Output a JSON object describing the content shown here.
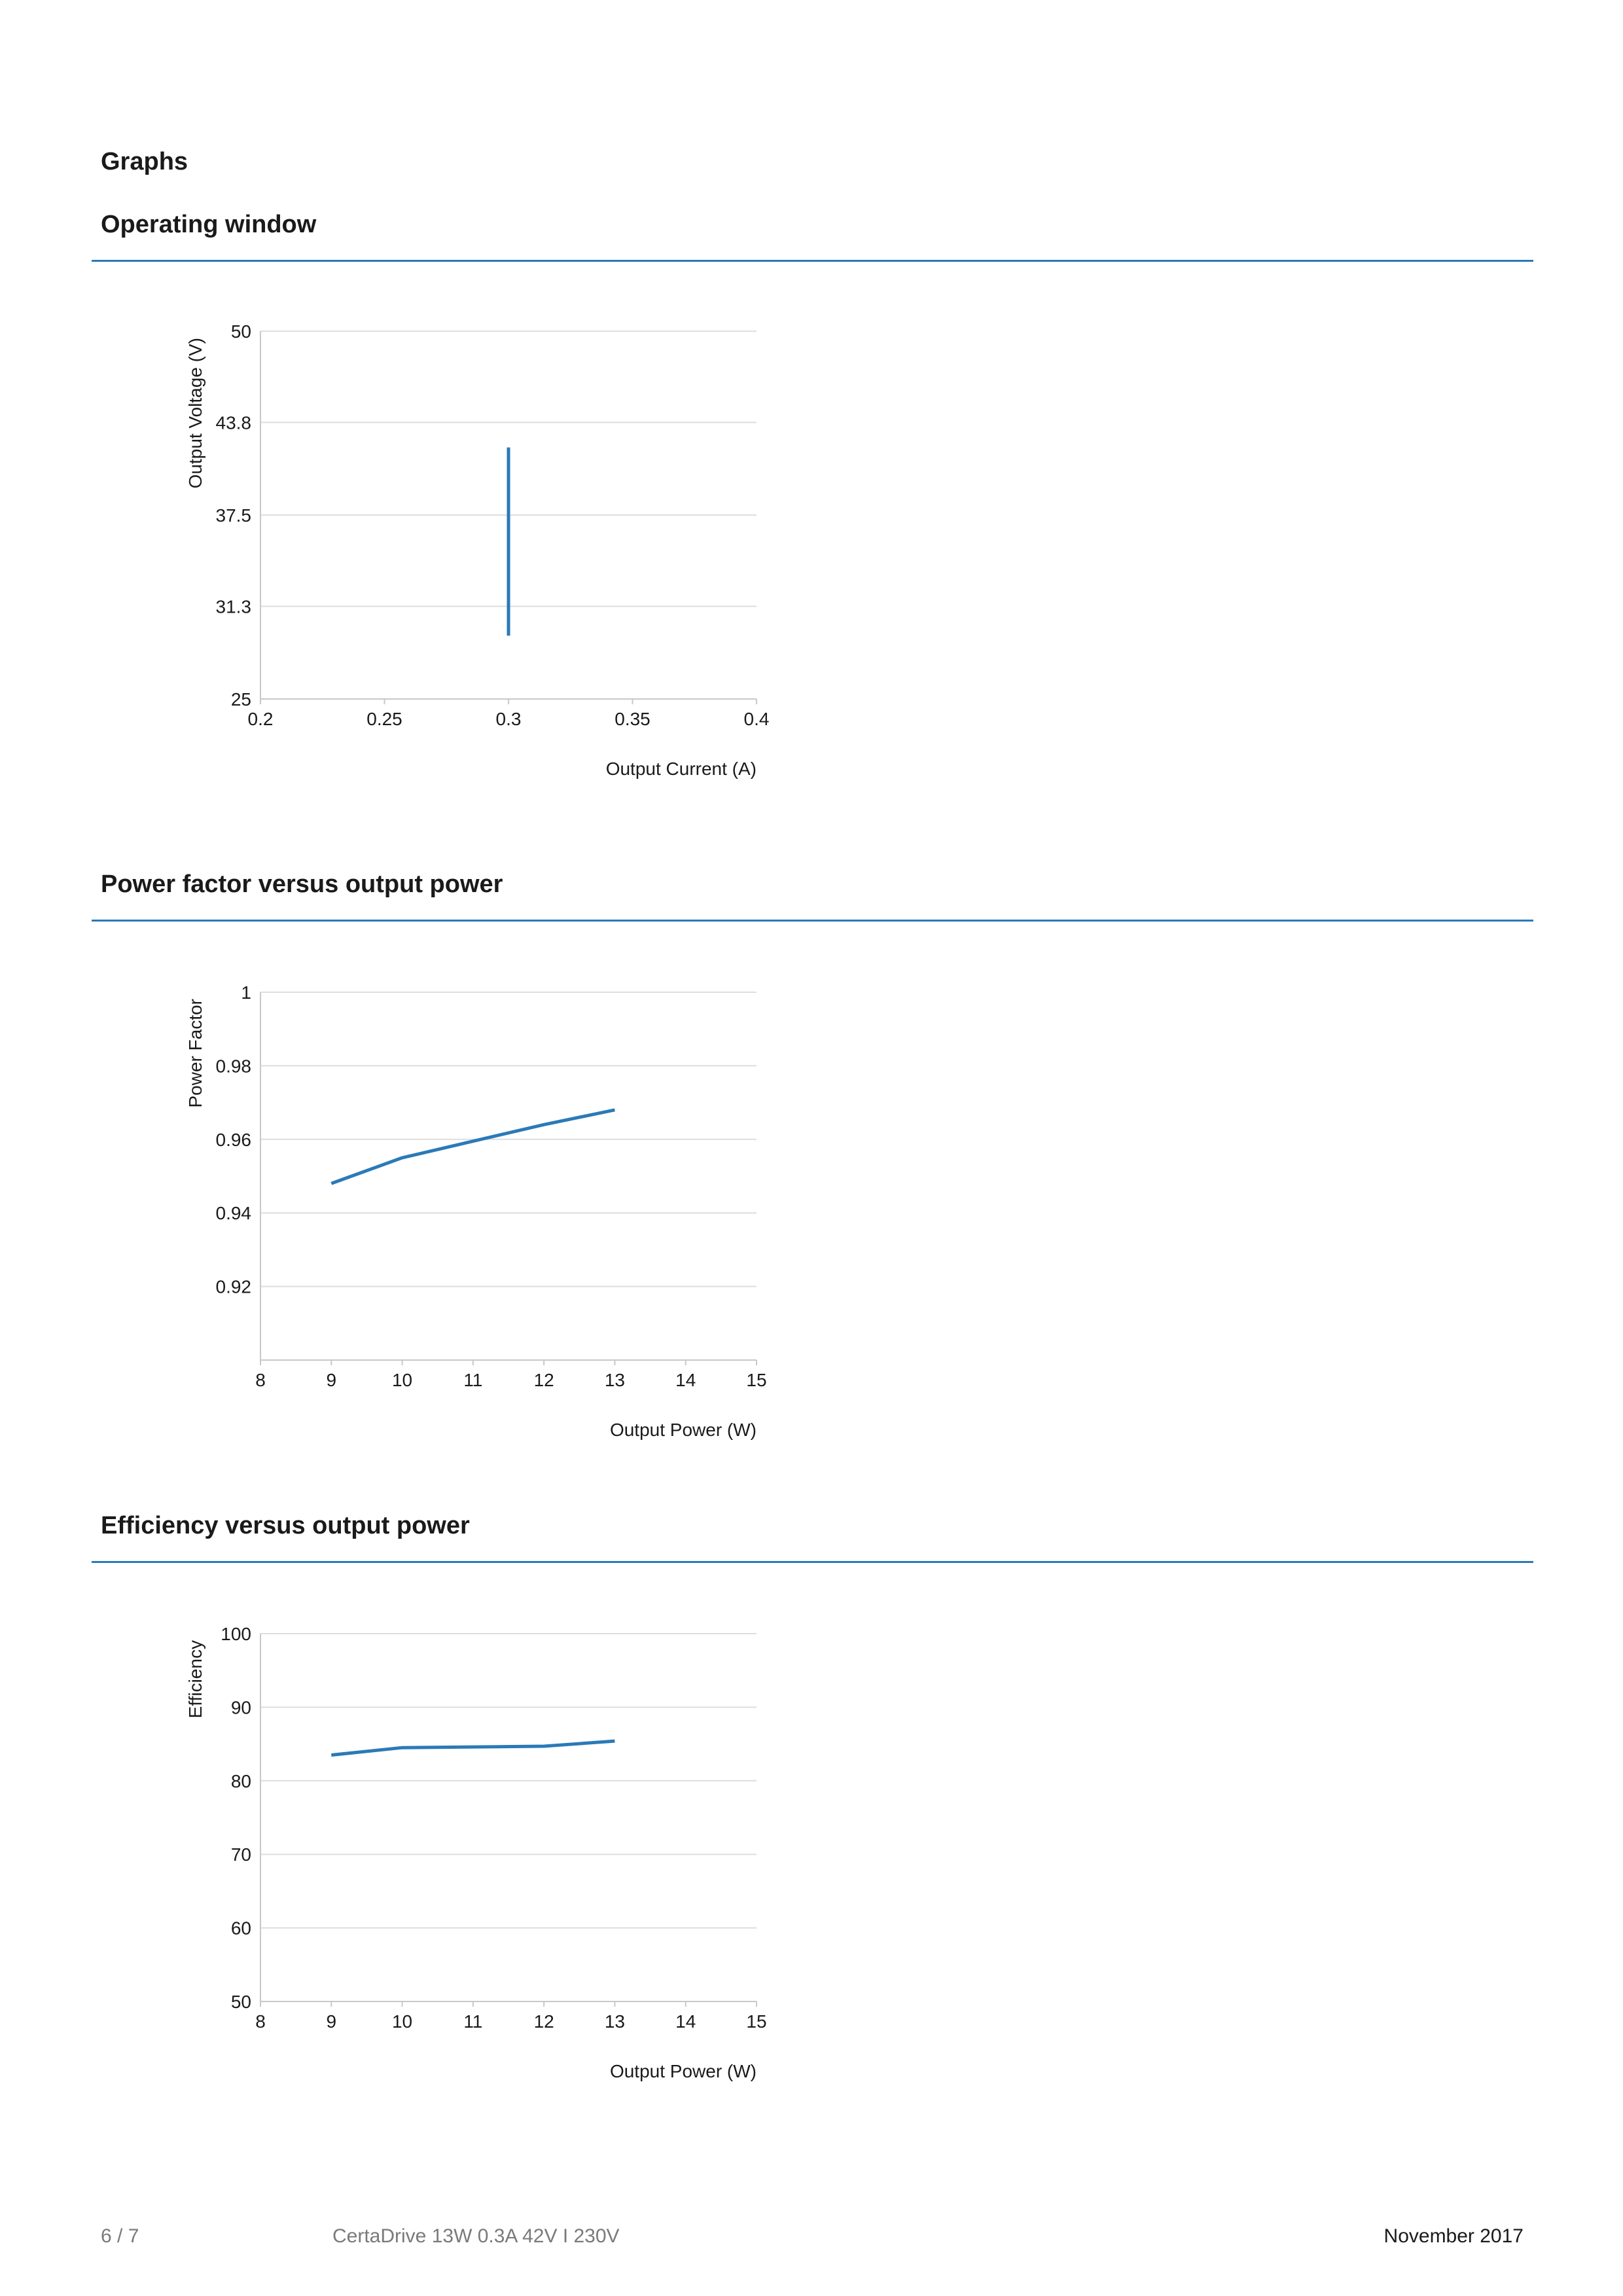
{
  "page": {
    "heading": "Graphs"
  },
  "sections": [
    {
      "title": "Operating window"
    },
    {
      "title": "Power factor versus output power"
    },
    {
      "title": "Efficiency versus output power"
    }
  ],
  "footer": {
    "page_number": "6 / 7",
    "product": "CertaDrive 13W 0.3A 42V I 230V",
    "date": "November 2017"
  },
  "colors": {
    "accent": "#2a7ab8",
    "line": "#2a7ab8",
    "grid": "#dedede",
    "axis": "#c8c8c8"
  },
  "chart_data": [
    {
      "type": "line",
      "title": "Operating window",
      "xlabel": "Output Current (A)",
      "ylabel": "Output Voltage (V)",
      "xlim": [
        0.2,
        0.4
      ],
      "ylim": [
        25,
        50
      ],
      "x_ticks": [
        "0.2",
        "0.25",
        "0.3",
        "0.35",
        "0.4"
      ],
      "y_ticks": [
        "25",
        "31.3",
        "37.5",
        "43.8",
        "50"
      ],
      "grid": true,
      "series": [
        {
          "x": [
            0.3,
            0.3
          ],
          "y": [
            29.3,
            42.1
          ]
        }
      ]
    },
    {
      "type": "line",
      "title": "Power factor versus output power",
      "xlabel": "Output Power (W)",
      "ylabel": "Power Factor",
      "xlim": [
        8,
        15
      ],
      "ylim": [
        0.9,
        1
      ],
      "x_ticks": [
        "8",
        "9",
        "10",
        "11",
        "12",
        "13",
        "14",
        "15"
      ],
      "y_ticks": [
        "0.92",
        "0.94",
        "0.96",
        "0.98",
        "1"
      ],
      "grid": true,
      "series": [
        {
          "x": [
            9,
            10,
            11,
            12,
            13
          ],
          "y": [
            0.948,
            0.955,
            0.9595,
            0.964,
            0.968
          ]
        }
      ]
    },
    {
      "type": "line",
      "title": "Efficiency versus output power",
      "xlabel": "Output Power (W)",
      "ylabel": "Efficiency",
      "xlim": [
        8,
        15
      ],
      "ylim": [
        50,
        100
      ],
      "x_ticks": [
        "8",
        "9",
        "10",
        "11",
        "12",
        "13",
        "14",
        "15"
      ],
      "y_ticks": [
        "50",
        "60",
        "70",
        "80",
        "90",
        "100"
      ],
      "grid": true,
      "series": [
        {
          "x": [
            9,
            10,
            11,
            12,
            13
          ],
          "y": [
            83.5,
            84.5,
            84.6,
            84.7,
            85.4
          ]
        }
      ]
    }
  ]
}
